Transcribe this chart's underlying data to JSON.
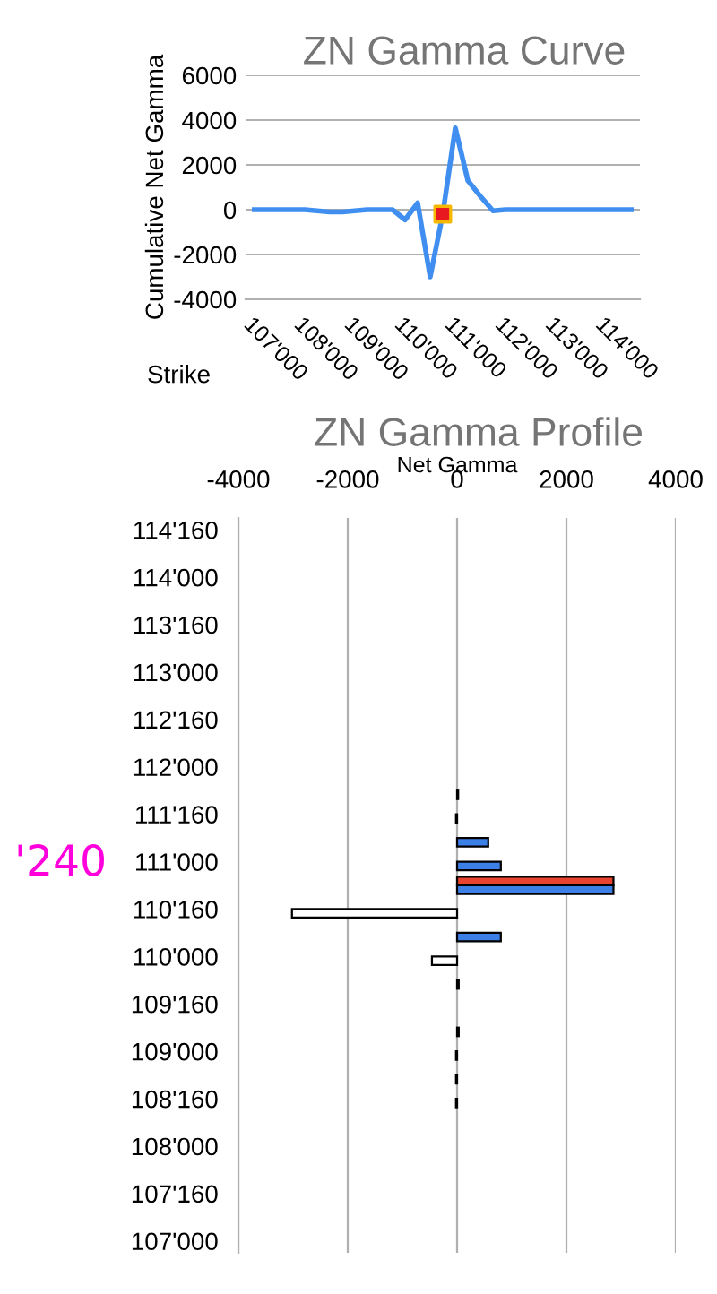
{
  "chart_data": [
    {
      "type": "line",
      "title": "ZN Gamma Curve",
      "xlabel": "Strike",
      "ylabel": "Cumulative Net Gamma",
      "categories": [
        "107'000",
        null,
        null,
        null,
        "108'000",
        null,
        null,
        null,
        "109'000",
        null,
        null,
        null,
        "110'000",
        null,
        null,
        null,
        "111'000",
        null,
        null,
        null,
        "112'000",
        null,
        null,
        null,
        "113'000",
        null,
        null,
        null,
        "114'000",
        null,
        null
      ],
      "series": [
        {
          "color": "#3f8ef0",
          "marker": "none",
          "values": [
            0,
            0,
            0,
            0,
            0,
            -50,
            -100,
            -100,
            -50,
            0,
            0,
            0,
            -450,
            300,
            -3000,
            -200,
            3650,
            1300,
            600,
            -50,
            0,
            0,
            0,
            0,
            0,
            0,
            0,
            0,
            0,
            0,
            0
          ]
        },
        {
          "type": "scatter",
          "color": "#e8191f",
          "marker": "square",
          "values": [
            null,
            null,
            null,
            null,
            null,
            null,
            null,
            null,
            null,
            null,
            null,
            null,
            null,
            null,
            null,
            -200,
            null,
            null,
            null,
            null,
            null,
            null,
            null,
            null,
            null,
            null,
            null,
            null,
            null,
            null,
            null
          ]
        }
      ],
      "ylim": [
        -4000,
        6000
      ],
      "yticks": [
        -4000,
        -2000,
        0,
        2000,
        4000,
        6000
      ],
      "grid": "y"
    },
    {
      "type": "bar",
      "orientation": "horizontal",
      "title": "ZN Gamma Profile",
      "xlabel": "Net Gamma",
      "categories": [
        "114'160",
        null,
        "114'000",
        null,
        "113'160",
        null,
        "113'000",
        null,
        "112'160",
        null,
        "112'000",
        null,
        "111'160",
        null,
        "111'000",
        null,
        "110'160",
        null,
        "110'000",
        null,
        "109'160",
        null,
        "109'000",
        null,
        "108'160",
        null,
        "108'000",
        null,
        "107'160",
        null,
        "107'000"
      ],
      "series": [
        {
          "color": "#3c7fe6",
          "colors": [
            "#3c7fe6",
            "#3c7fe6",
            "#3c7fe6",
            "#3c7fe6",
            "#3c7fe6",
            "#3c7fe6",
            "#3c7fe6",
            "#3c7fe6",
            "#3c7fe6",
            "#3c7fe6",
            "#3c7fe6",
            "#3c7fe6",
            "#ffffff",
            "#3c7fe6",
            "#3c7fe6",
            "#3c7fe6",
            "#ffffff",
            "#3c7fe6",
            "#ffffff",
            "#3c7fe6",
            "#3c7fe6",
            "#3c7fe6",
            "#ffffff",
            "#ffffff",
            "#ffffff",
            "#3c7fe6",
            "#3c7fe6",
            "#3c7fe6",
            "#3c7fe6",
            "#3c7fe6",
            "#3c7fe6"
          ],
          "values": [
            null,
            null,
            null,
            null,
            null,
            null,
            null,
            null,
            null,
            null,
            null,
            20,
            -20,
            570,
            800,
            2860,
            -3020,
            800,
            -460,
            30,
            null,
            30,
            -20,
            -20,
            -20,
            null,
            null,
            null,
            null,
            null,
            null
          ]
        },
        {
          "color": "#e8432f",
          "values": [
            null,
            null,
            null,
            null,
            null,
            null,
            null,
            null,
            null,
            null,
            null,
            null,
            null,
            null,
            null,
            2860,
            null,
            null,
            null,
            null,
            null,
            null,
            null,
            null,
            null,
            null,
            null,
            null,
            null,
            null,
            null
          ]
        }
      ],
      "xlim": [
        -4000,
        4000
      ],
      "xticks": [
        -4000,
        -2000,
        0,
        2000,
        4000
      ],
      "grid": "x",
      "annotations": [
        "'240"
      ]
    }
  ]
}
